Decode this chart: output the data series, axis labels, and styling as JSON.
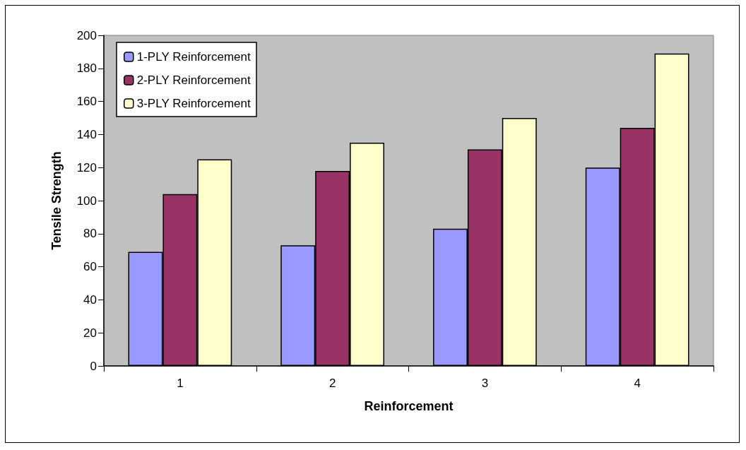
{
  "chart_data": {
    "type": "bar",
    "xlabel": "Reinforcement",
    "ylabel": "Tensile Strength",
    "categories": [
      "1",
      "2",
      "3",
      "4"
    ],
    "series": [
      {
        "name": "1-PLY Reinforcement",
        "color": "#9999ff",
        "values": [
          69,
          73,
          83,
          120
        ]
      },
      {
        "name": "2-PLY Reinforcement",
        "color": "#993366",
        "values": [
          104,
          118,
          131,
          144
        ]
      },
      {
        "name": "3-PLY Reinforcement",
        "color": "#ffffcc",
        "values": [
          125,
          135,
          150,
          189
        ]
      }
    ],
    "ylim": [
      0,
      200
    ],
    "yticks": [
      0,
      20,
      40,
      60,
      80,
      100,
      120,
      140,
      160,
      180,
      200
    ],
    "grid": false,
    "legend": "top left"
  }
}
